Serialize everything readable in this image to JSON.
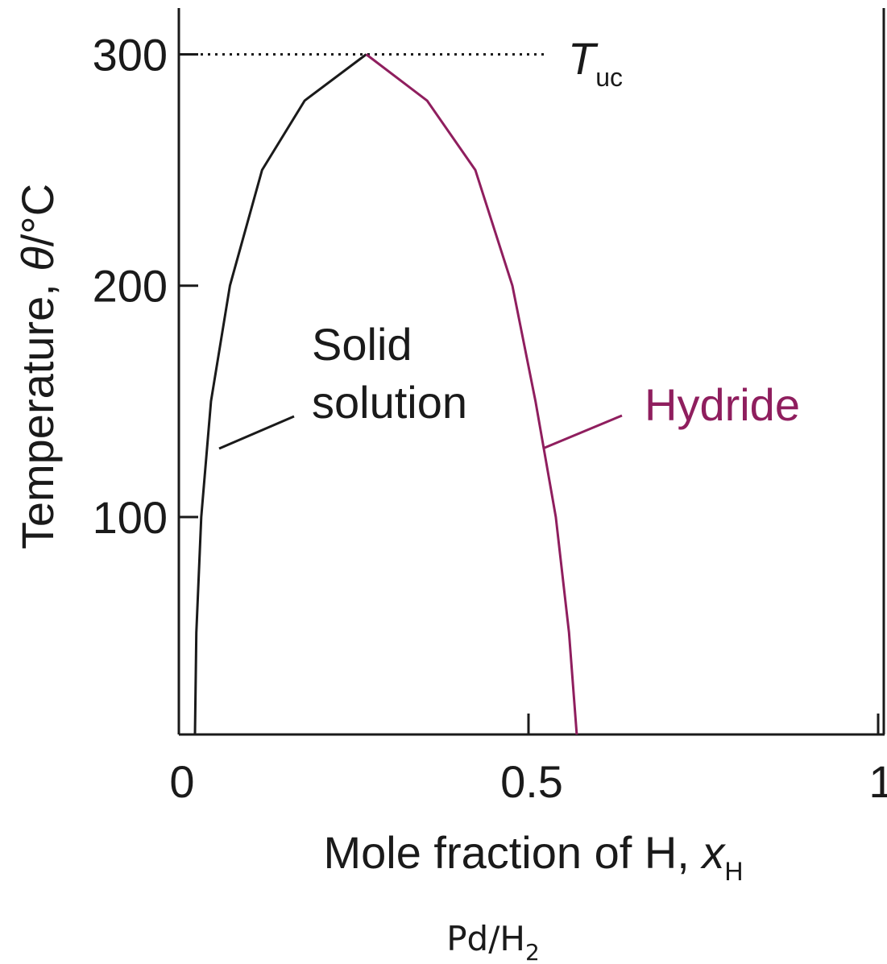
{
  "chart_data": {
    "type": "line",
    "series": [
      {
        "name": "Solid solution",
        "color": "#1a1a1a",
        "x": [
          0.023,
          0.025,
          0.032,
          0.046,
          0.073,
          0.119,
          0.18,
          0.268
        ],
        "values": [
          6,
          50,
          100,
          150,
          200,
          250,
          280,
          300
        ]
      },
      {
        "name": "Hydride",
        "color": "#8f1e5e",
        "x": [
          0.268,
          0.355,
          0.424,
          0.477,
          0.51,
          0.539,
          0.558,
          0.569
        ],
        "values": [
          300,
          280,
          250,
          200,
          150,
          100,
          50,
          6
        ]
      }
    ],
    "xlim": [
      0,
      1
    ],
    "xticks": [
      0,
      0.5,
      1
    ],
    "ylim": [
      6,
      320
    ],
    "yticks": [
      100,
      200,
      300
    ],
    "hline": 300,
    "hline_label": {
      "text": "T",
      "sub": "uc"
    },
    "xlabel": {
      "text": "Mole fraction of H, ",
      "symbol": "x",
      "sub": "H"
    },
    "ylabel": {
      "text": "Temperature, ",
      "symbol": "θ",
      "unit": "/°C"
    },
    "caption": {
      "text": "Pd/H",
      "sub": "2"
    }
  }
}
